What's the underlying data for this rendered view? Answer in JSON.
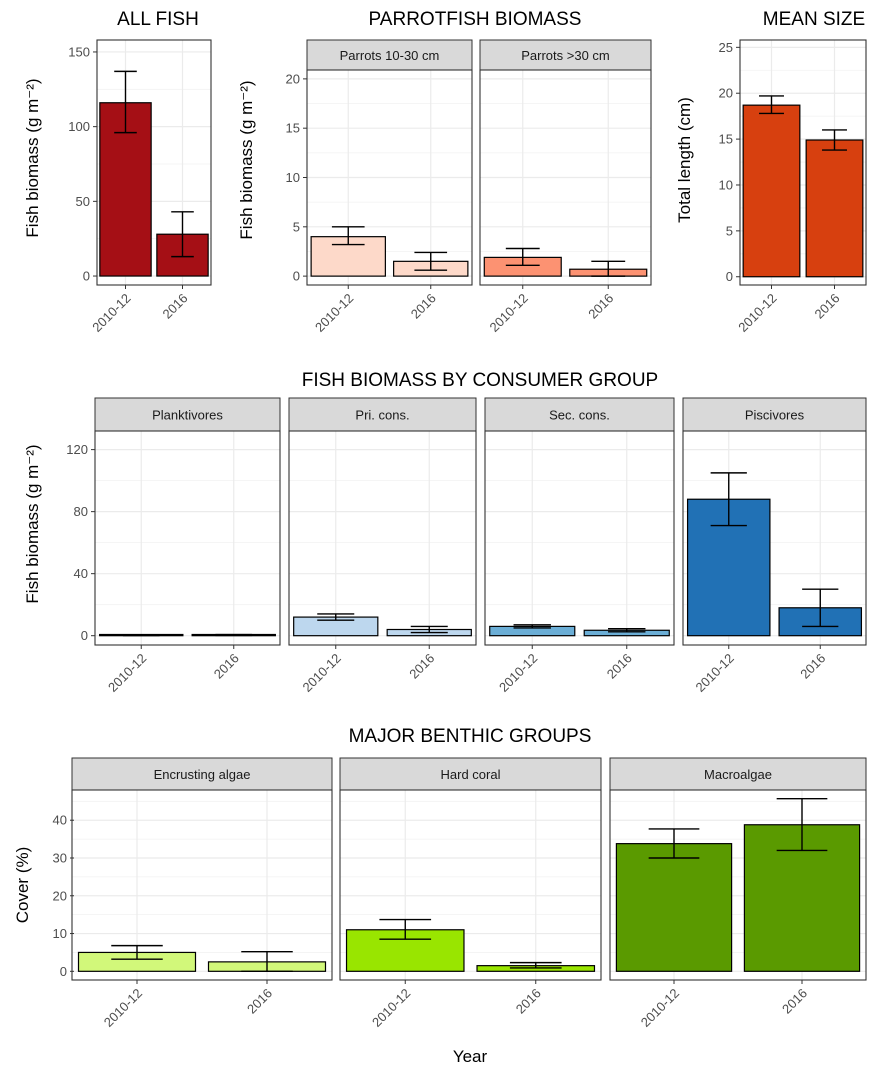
{
  "xlabel": "Year",
  "chart_data": [
    {
      "type": "bar",
      "title": "ALL FISH",
      "ylabel": "Fish biomass (g m⁻²)",
      "ylim": [
        -6,
        158
      ],
      "yticks": [
        0,
        50,
        100,
        150
      ],
      "grid": true,
      "categories": [
        "2010-12",
        "2016"
      ],
      "facets": [
        {
          "name": "",
          "fill": "#a50f15",
          "values": [
            116,
            28
          ],
          "err_low": [
            96,
            13
          ],
          "err_high": [
            137,
            43
          ]
        }
      ]
    },
    {
      "type": "bar",
      "title": "PARROTFISH BIOMASS",
      "ylabel": "Fish biomass (g m⁻²)",
      "ylim": [
        -0.9,
        20.9
      ],
      "yticks": [
        0,
        5,
        10,
        15,
        20
      ],
      "grid": true,
      "categories": [
        "2010-12",
        "2016"
      ],
      "facets": [
        {
          "name": "Parrots 10-30 cm",
          "fill": "#fdd9c9",
          "values": [
            4.0,
            1.5
          ],
          "err_low": [
            3.2,
            0.6
          ],
          "err_high": [
            5.0,
            2.4
          ]
        },
        {
          "name": "Parrots >30 cm",
          "fill": "#fc9272",
          "values": [
            1.9,
            0.7
          ],
          "err_low": [
            1.1,
            0.0
          ],
          "err_high": [
            2.8,
            1.5
          ]
        }
      ]
    },
    {
      "type": "bar",
      "title": "MEAN SIZE",
      "ylabel": "Total length (cm)",
      "ylim": [
        -0.9,
        25.8
      ],
      "yticks": [
        0,
        5,
        10,
        15,
        20,
        25
      ],
      "grid": true,
      "categories": [
        "2010-12",
        "2016"
      ],
      "facets": [
        {
          "name": "",
          "fill": "#d7400f",
          "values": [
            18.7,
            14.9
          ],
          "err_low": [
            17.8,
            13.8
          ],
          "err_high": [
            19.7,
            16.0
          ]
        }
      ]
    },
    {
      "type": "bar",
      "title": "FISH BIOMASS BY CONSUMER GROUP",
      "ylabel": "Fish biomass (g m⁻²)",
      "ylim": [
        -6,
        132
      ],
      "yticks": [
        0,
        40,
        80,
        120
      ],
      "grid": true,
      "categories": [
        "2010-12",
        "2016"
      ],
      "facets": [
        {
          "name": "Planktivores",
          "fill": "#eff3ff",
          "values": [
            0.3,
            0.4
          ],
          "err_low": [
            0.1,
            0.2
          ],
          "err_high": [
            0.5,
            0.7
          ]
        },
        {
          "name": "Pri. cons.",
          "fill": "#bdd7ee",
          "values": [
            12,
            4
          ],
          "err_low": [
            10,
            2
          ],
          "err_high": [
            14,
            6
          ]
        },
        {
          "name": "Sec. cons.",
          "fill": "#6baed6",
          "values": [
            6,
            3.5
          ],
          "err_low": [
            5,
            2.5
          ],
          "err_high": [
            7,
            4.5
          ]
        },
        {
          "name": "Piscivores",
          "fill": "#2171b5",
          "values": [
            88,
            18
          ],
          "err_low": [
            71,
            6
          ],
          "err_high": [
            105,
            30
          ]
        }
      ]
    },
    {
      "type": "bar",
      "title": "MAJOR BENTHIC GROUPS",
      "ylabel": "Cover (%)",
      "ylim": [
        -2.3,
        48
      ],
      "yticks": [
        0,
        10,
        20,
        30,
        40
      ],
      "grid": true,
      "categories": [
        "2010-12",
        "2016"
      ],
      "facets": [
        {
          "name": "Encrusting algae",
          "fill": "#d2f87a",
          "values": [
            5,
            2.5
          ],
          "err_low": [
            3.2,
            0.0
          ],
          "err_high": [
            6.8,
            5.2
          ]
        },
        {
          "name": "Hard coral",
          "fill": "#99e500",
          "values": [
            11,
            1.5
          ],
          "err_low": [
            8.5,
            0.9
          ],
          "err_high": [
            13.7,
            2.3
          ]
        },
        {
          "name": "Macroalgae",
          "fill": "#5a9a00",
          "values": [
            33.8,
            38.8
          ],
          "err_low": [
            30,
            32
          ],
          "err_high": [
            37.7,
            45.7
          ]
        }
      ]
    }
  ]
}
